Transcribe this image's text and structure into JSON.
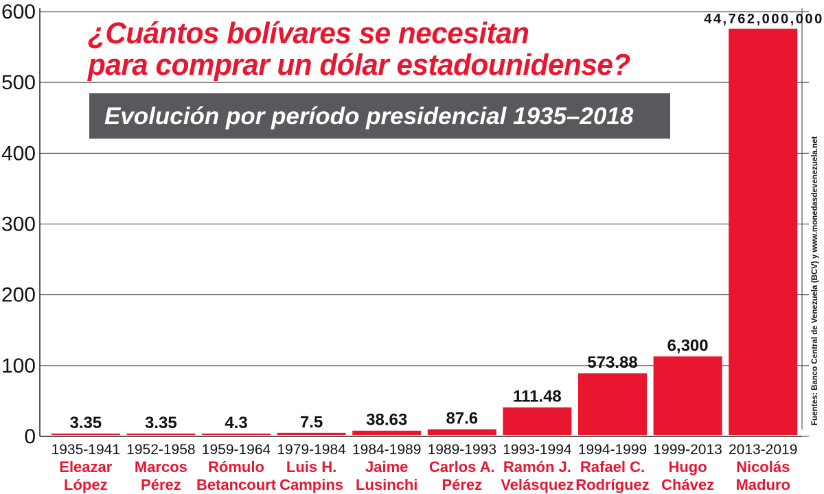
{
  "chart_data": {
    "type": "bar",
    "title": "¿Cuántos bolívares se necesitan para comprar un dólar estadounidense?",
    "title_lines": [
      "¿Cuántos bolívares se necesitan",
      "para comprar un dólar estadounidense?"
    ],
    "subtitle": "Evolución por período presidencial 1935–2018",
    "source": "Fuentes: Banco Central de Venezuela (BCV) y www.monedasdevenezuela.net",
    "ylim": [
      0,
      600
    ],
    "yticks": [
      "0",
      "100",
      "200",
      "300",
      "400",
      "500",
      "600"
    ],
    "grid": true,
    "categories": [
      "1935-1941",
      "1952-1958",
      "1959-1964",
      "1979-1984",
      "1984-1989",
      "1989-1993",
      "1993-1994",
      "1994-1999",
      "1999-2013",
      "2013-2019"
    ],
    "presidents": [
      [
        "Eleazar",
        "López"
      ],
      [
        "Marcos",
        "Pérez"
      ],
      [
        "Rómulo",
        "Betancourt"
      ],
      [
        "Luis H.",
        "Campins"
      ],
      [
        "Jaime",
        "Lusinchi"
      ],
      [
        "Carlos A.",
        "Pérez"
      ],
      [
        "Ramón J.",
        "Velásquez"
      ],
      [
        "Rafael C.",
        "Rodríguez"
      ],
      [
        "Hugo",
        "Chávez"
      ],
      [
        "Nicolás",
        "Maduro"
      ]
    ],
    "data_labels": [
      "3.35",
      "3.35",
      "4.3",
      "7.5",
      "38.63",
      "87.6",
      "111.48",
      "573.88",
      "6,300",
      "44,762,000,000"
    ],
    "values": [
      3.35,
      3.35,
      4.3,
      7.5,
      38.63,
      87.6,
      111.48,
      573.88,
      6300,
      44762000000
    ],
    "bar_heights_axis_units": [
      4,
      4,
      4,
      5,
      8,
      10,
      41,
      89,
      113,
      576
    ],
    "colors": {
      "bar": "#e8162e",
      "label_name": "#e8162e",
      "subtitle_box": "#58595d",
      "grid": "#333333"
    }
  }
}
